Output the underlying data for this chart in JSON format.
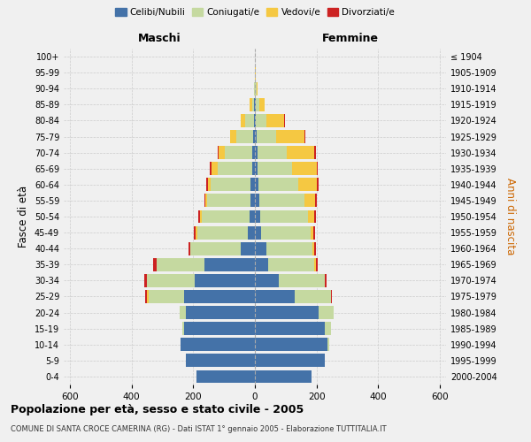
{
  "age_groups": [
    "0-4",
    "5-9",
    "10-14",
    "15-19",
    "20-24",
    "25-29",
    "30-34",
    "35-39",
    "40-44",
    "45-49",
    "50-54",
    "55-59",
    "60-64",
    "65-69",
    "70-74",
    "75-79",
    "80-84",
    "85-89",
    "90-94",
    "95-99",
    "100+"
  ],
  "birth_years": [
    "2000-2004",
    "1995-1999",
    "1990-1994",
    "1985-1989",
    "1980-1984",
    "1975-1979",
    "1970-1974",
    "1965-1969",
    "1960-1964",
    "1955-1959",
    "1950-1954",
    "1945-1949",
    "1940-1944",
    "1935-1939",
    "1930-1934",
    "1925-1929",
    "1920-1924",
    "1915-1919",
    "1910-1914",
    "1905-1909",
    "≤ 1904"
  ],
  "maschi": {
    "celibi": [
      190,
      225,
      240,
      230,
      225,
      230,
      195,
      165,
      45,
      22,
      18,
      15,
      13,
      10,
      8,
      5,
      3,
      2,
      0,
      0,
      0
    ],
    "coniugati": [
      0,
      0,
      0,
      5,
      18,
      115,
      155,
      155,
      165,
      165,
      155,
      140,
      130,
      110,
      90,
      55,
      28,
      8,
      2,
      0,
      0
    ],
    "vedovi": [
      0,
      0,
      0,
      0,
      0,
      5,
      0,
      0,
      0,
      5,
      5,
      5,
      10,
      20,
      20,
      20,
      15,
      8,
      0,
      0,
      0
    ],
    "divorziati": [
      0,
      0,
      0,
      0,
      0,
      5,
      10,
      10,
      5,
      5,
      5,
      5,
      5,
      5,
      3,
      0,
      0,
      0,
      0,
      0,
      0
    ]
  },
  "femmine": {
    "nubili": [
      185,
      228,
      235,
      228,
      208,
      128,
      78,
      43,
      38,
      20,
      17,
      15,
      12,
      10,
      8,
      5,
      3,
      3,
      0,
      0,
      0
    ],
    "coniugate": [
      0,
      0,
      5,
      18,
      48,
      118,
      150,
      150,
      150,
      160,
      155,
      145,
      130,
      110,
      95,
      65,
      33,
      10,
      5,
      0,
      0
    ],
    "vedove": [
      0,
      0,
      0,
      0,
      0,
      0,
      0,
      5,
      5,
      10,
      20,
      35,
      60,
      80,
      90,
      90,
      60,
      20,
      5,
      2,
      0
    ],
    "divorziate": [
      0,
      0,
      0,
      0,
      0,
      5,
      5,
      5,
      5,
      5,
      5,
      5,
      5,
      5,
      5,
      5,
      3,
      0,
      0,
      0,
      0
    ]
  },
  "colors": {
    "celibi": "#4472a8",
    "coniugati": "#c5d9a0",
    "vedovi": "#f5c842",
    "divorziati": "#cc2222"
  },
  "xlim": 620,
  "title": "Popolazione per età, sesso e stato civile - 2005",
  "subtitle": "COMUNE DI SANTA CROCE CAMERINA (RG) - Dati ISTAT 1° gennaio 2005 - Elaborazione TUTTITALIA.IT",
  "ylabel_left": "Fasce di età",
  "ylabel_right": "Anni di nascita",
  "legend_labels": [
    "Celibi/Nubili",
    "Coniugati/e",
    "Vedovi/e",
    "Divorziati/e"
  ],
  "maschi_label": "Maschi",
  "femmine_label": "Femmine",
  "background_color": "#f0f0f0"
}
